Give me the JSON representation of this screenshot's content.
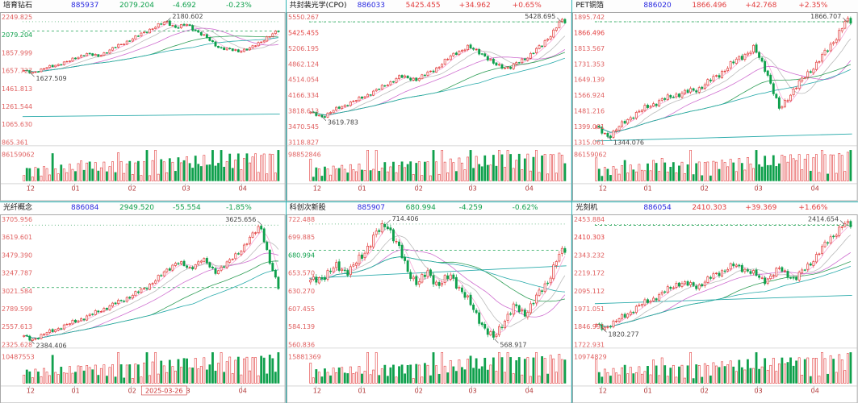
{
  "theme": {
    "up": "#e23d3d",
    "down": "#0fa04c",
    "code": "#2727e0",
    "axis": "#e06060",
    "xaxis": "#b03434",
    "dashed": "#17a14f",
    "maxline": "#2f9e57",
    "border": "#a8a8a8",
    "divider": "#2ab4b4",
    "ann": "#444444",
    "ma_colors": [
      "#f6a8d7",
      "#bbbbbb",
      "#cf6fd0",
      "#2f9e57",
      "#2aabab"
    ],
    "flat_color": "#2aabab"
  },
  "x_axis": {
    "labels": [
      "12",
      "01",
      "02",
      "03",
      "04"
    ],
    "fractions": [
      0.015,
      0.19,
      0.41,
      0.62,
      0.84
    ]
  },
  "chart_data": [
    {
      "type": "candlestick",
      "name": "培育钻石",
      "code": "885937",
      "price": "2079.204",
      "change": "-4.692",
      "pct": "-0.23%",
      "range": [
        865.361,
        2249.825
      ],
      "y_ticks": [
        "2249.825",
        "2079.204",
        "1857.999",
        "1657.727",
        "1461.813",
        "1261.544",
        "1065.630",
        "865.361"
      ],
      "vol_label": "86159062",
      "annotations": {
        "max": {
          "value": "2180.602",
          "x": 0.56
        },
        "min": {
          "value": "1627.509",
          "x": 0.03
        }
      },
      "keypoints": [
        [
          0,
          1645
        ],
        [
          0.03,
          1627.5
        ],
        [
          0.1,
          1690
        ],
        [
          0.18,
          1755
        ],
        [
          0.24,
          1835
        ],
        [
          0.29,
          1805
        ],
        [
          0.36,
          1905
        ],
        [
          0.44,
          2015
        ],
        [
          0.5,
          2105
        ],
        [
          0.56,
          2180.6
        ],
        [
          0.6,
          2115
        ],
        [
          0.64,
          2150
        ],
        [
          0.7,
          2040
        ],
        [
          0.77,
          1895
        ],
        [
          0.84,
          1862
        ],
        [
          0.89,
          1890
        ],
        [
          0.95,
          2000
        ],
        [
          1,
          2079.2
        ]
      ],
      "flat_line": 1165,
      "date_label": null
    },
    {
      "type": "candlestick",
      "name": "共封装光学(CPO)",
      "code": "886033",
      "price": "5425.455",
      "change": "+34.962",
      "pct": "+0.65%",
      "range": [
        3118.827,
        5550.267
      ],
      "y_ticks": [
        "5550.267",
        "5425.455",
        "5206.195",
        "4862.124",
        "4514.054",
        "4166.334",
        "3818.613",
        "3470.545",
        "3118.827"
      ],
      "vol_label": "98852846",
      "annotations": {
        "max": {
          "value": "5428.695",
          "x": 0.98
        },
        "min": {
          "value": "3619.783",
          "x": 0.05
        }
      },
      "keypoints": [
        [
          0,
          3690
        ],
        [
          0.05,
          3619.8
        ],
        [
          0.11,
          3790
        ],
        [
          0.18,
          3930
        ],
        [
          0.27,
          4150
        ],
        [
          0.35,
          4380
        ],
        [
          0.42,
          4330
        ],
        [
          0.5,
          4560
        ],
        [
          0.57,
          4840
        ],
        [
          0.62,
          4940
        ],
        [
          0.67,
          4840
        ],
        [
          0.72,
          4620
        ],
        [
          0.78,
          4540
        ],
        [
          0.85,
          4750
        ],
        [
          0.91,
          4980
        ],
        [
          0.96,
          5280
        ],
        [
          0.98,
          5428.7
        ],
        [
          1,
          5425.5
        ]
      ],
      "flat_line": null,
      "date_label": null
    },
    {
      "type": "candlestick",
      "name": "PET铜箔",
      "code": "886020",
      "price": "1866.496",
      "change": "+42.768",
      "pct": "+2.35%",
      "range": [
        1315.061,
        1895.742
      ],
      "y_ticks": [
        "1895.742",
        "1866.496",
        "1813.567",
        "1731.353",
        "1649.139",
        "1566.924",
        "1481.216",
        "1399.001",
        "1315.061"
      ],
      "vol_label": "86159062",
      "annotations": {
        "max": {
          "value": "1866.707",
          "x": 0.98
        },
        "min": {
          "value": "1344.076",
          "x": 0.05
        }
      },
      "keypoints": [
        [
          0,
          1385
        ],
        [
          0.05,
          1344.1
        ],
        [
          0.12,
          1420
        ],
        [
          0.2,
          1480
        ],
        [
          0.3,
          1530
        ],
        [
          0.4,
          1560
        ],
        [
          0.48,
          1625
        ],
        [
          0.56,
          1700
        ],
        [
          0.62,
          1745
        ],
        [
          0.67,
          1640
        ],
        [
          0.72,
          1465
        ],
        [
          0.78,
          1565
        ],
        [
          0.85,
          1655
        ],
        [
          0.92,
          1755
        ],
        [
          0.98,
          1866.7
        ],
        [
          1,
          1866.5
        ]
      ],
      "flat_line": 1340,
      "date_label": null
    },
    {
      "type": "candlestick",
      "name": "光纤概念",
      "code": "886084",
      "price": "2949.520",
      "change": "-55.554",
      "pct": "-1.85%",
      "range": [
        2325.628,
        3705.956
      ],
      "y_ticks": [
        "3705.956",
        "3619.601",
        "3479.390",
        "3247.787",
        "3021.584",
        "2789.599",
        "2557.613",
        "2325.628"
      ],
      "vol_label": "10487553",
      "annotations": {
        "max": {
          "value": "3625.656",
          "x": 0.93
        },
        "min": {
          "value": "2384.406",
          "x": 0.03
        }
      },
      "keypoints": [
        [
          0,
          2420
        ],
        [
          0.03,
          2384.4
        ],
        [
          0.1,
          2470
        ],
        [
          0.18,
          2560
        ],
        [
          0.26,
          2650
        ],
        [
          0.33,
          2740
        ],
        [
          0.4,
          2830
        ],
        [
          0.47,
          2930
        ],
        [
          0.53,
          3060
        ],
        [
          0.6,
          3230
        ],
        [
          0.65,
          3150
        ],
        [
          0.7,
          3260
        ],
        [
          0.75,
          3120
        ],
        [
          0.8,
          3210
        ],
        [
          0.86,
          3380
        ],
        [
          0.93,
          3625.7
        ],
        [
          0.97,
          3180
        ],
        [
          1,
          2949.5
        ]
      ],
      "flat_line": null,
      "date_label": "2025-03-26"
    },
    {
      "type": "candlestick",
      "name": "科创次新股",
      "code": "885907",
      "price": "680.994",
      "change": "-4.259",
      "pct": "-0.62%",
      "range": [
        560.836,
        722.488
      ],
      "y_ticks": [
        "722.488",
        "699.885",
        "680.994",
        "653.570",
        "630.270",
        "607.455",
        "584.139",
        "560.836"
      ],
      "vol_label": "15881369",
      "annotations": {
        "max": {
          "value": "714.406",
          "x": 0.3
        },
        "min": {
          "value": "568.917",
          "x": 0.72
        }
      },
      "keypoints": [
        [
          0,
          641
        ],
        [
          0.05,
          648
        ],
        [
          0.1,
          660
        ],
        [
          0.15,
          655
        ],
        [
          0.2,
          672
        ],
        [
          0.25,
          700
        ],
        [
          0.3,
          714.4
        ],
        [
          0.34,
          690
        ],
        [
          0.38,
          655
        ],
        [
          0.42,
          640
        ],
        [
          0.46,
          652
        ],
        [
          0.5,
          638
        ],
        [
          0.55,
          648
        ],
        [
          0.6,
          628
        ],
        [
          0.65,
          600
        ],
        [
          0.69,
          580
        ],
        [
          0.72,
          568.9
        ],
        [
          0.76,
          592
        ],
        [
          0.8,
          610
        ],
        [
          0.84,
          600
        ],
        [
          0.88,
          618
        ],
        [
          0.93,
          640
        ],
        [
          0.97,
          672
        ],
        [
          1,
          681
        ]
      ],
      "flat_line": 653.6,
      "date_label": null
    },
    {
      "type": "candlestick",
      "name": "光刻机",
      "code": "886054",
      "price": "2410.303",
      "change": "+39.369",
      "pct": "+1.66%",
      "range": [
        1722.931,
        2453.884
      ],
      "y_ticks": [
        "2453.884",
        "2410.303",
        "2343.232",
        "2219.172",
        "2095.112",
        "1971.051",
        "1846.991",
        "1722.931"
      ],
      "vol_label": "10974829",
      "annotations": {
        "max": {
          "value": "2414.654",
          "x": 0.97
        },
        "min": {
          "value": "1820.277",
          "x": 0.03
        }
      },
      "keypoints": [
        [
          0,
          1835
        ],
        [
          0.03,
          1820.3
        ],
        [
          0.1,
          1880
        ],
        [
          0.17,
          1950
        ],
        [
          0.25,
          2010
        ],
        [
          0.32,
          2080
        ],
        [
          0.4,
          2060
        ],
        [
          0.47,
          2130
        ],
        [
          0.54,
          2180
        ],
        [
          0.6,
          2150
        ],
        [
          0.66,
          2090
        ],
        [
          0.72,
          2160
        ],
        [
          0.78,
          2100
        ],
        [
          0.84,
          2190
        ],
        [
          0.9,
          2300
        ],
        [
          0.97,
          2414.7
        ],
        [
          1,
          2410.3
        ]
      ],
      "flat_line": 1985,
      "date_label": null
    }
  ]
}
